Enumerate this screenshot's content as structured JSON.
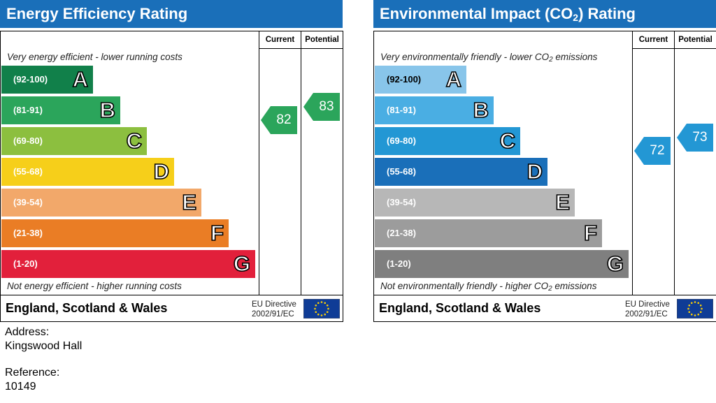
{
  "chart_data": [
    {
      "type": "bar",
      "title": "Energy Efficiency Rating",
      "top_caption": "Very energy efficient - lower running costs",
      "bottom_caption": "Not energy efficient - higher running costs",
      "columns": {
        "current": "Current",
        "potential": "Potential"
      },
      "bands": [
        {
          "range": "(92-100)",
          "letter": "A",
          "color": "#11804a"
        },
        {
          "range": "(81-91)",
          "letter": "B",
          "color": "#2ba55b"
        },
        {
          "range": "(69-80)",
          "letter": "C",
          "color": "#8cbf3f"
        },
        {
          "range": "(55-68)",
          "letter": "D",
          "color": "#f6cf1a"
        },
        {
          "range": "(39-54)",
          "letter": "E",
          "color": "#f2a86a"
        },
        {
          "range": "(21-38)",
          "letter": "F",
          "color": "#ea7d25"
        },
        {
          "range": "(1-20)",
          "letter": "G",
          "color": "#e2203b"
        }
      ],
      "current": {
        "value": "82",
        "band": "B",
        "color": "#2ba55b"
      },
      "potential": {
        "value": "83",
        "band": "B",
        "color": "#2ba55b"
      },
      "footer": {
        "country": "England, Scotland & Wales",
        "directive_line1": "EU Directive",
        "directive_line2": "2002/91/EC"
      }
    },
    {
      "type": "bar",
      "title": "Environmental Impact (CO2) Rating",
      "title_parts": {
        "before": "Environmental Impact (CO",
        "sub": "2",
        "after": ") Rating"
      },
      "top_caption": "Very environmentally friendly - lower CO2 emissions",
      "top_caption_parts": {
        "before": "Very environmentally friendly - lower CO",
        "sub": "2",
        "after": " emissions"
      },
      "bottom_caption": "Not environmentally friendly - higher CO2 emissions",
      "bottom_caption_parts": {
        "before": "Not environmentally friendly - higher CO",
        "sub": "2",
        "after": " emissions"
      },
      "columns": {
        "current": "Current",
        "potential": "Potential"
      },
      "bands": [
        {
          "range": "(92-100)",
          "letter": "A",
          "color": "#88c5ea"
        },
        {
          "range": "(81-91)",
          "letter": "B",
          "color": "#4aaee3"
        },
        {
          "range": "(69-80)",
          "letter": "C",
          "color": "#2397d4"
        },
        {
          "range": "(55-68)",
          "letter": "D",
          "color": "#1a6fb9"
        },
        {
          "range": "(39-54)",
          "letter": "E",
          "color": "#b7b7b7"
        },
        {
          "range": "(21-38)",
          "letter": "F",
          "color": "#9c9c9c"
        },
        {
          "range": "(1-20)",
          "letter": "G",
          "color": "#7f7f7f"
        }
      ],
      "current": {
        "value": "72",
        "band": "C",
        "color": "#2397d4"
      },
      "potential": {
        "value": "73",
        "band": "C",
        "color": "#2397d4"
      },
      "footer": {
        "country": "England, Scotland & Wales",
        "directive_line1": "EU Directive",
        "directive_line2": "2002/91/EC"
      }
    }
  ],
  "info": {
    "address_label": "Address:",
    "address_value": "Kingswood Hall",
    "reference_label": "Reference:",
    "reference_value": "10149"
  },
  "icons": {
    "eu_flag": "eu-flag-icon"
  },
  "colors": {
    "title_bar": "#1a6fb9",
    "eu_blue": "#0f3c96",
    "eu_star": "#ffd200"
  }
}
